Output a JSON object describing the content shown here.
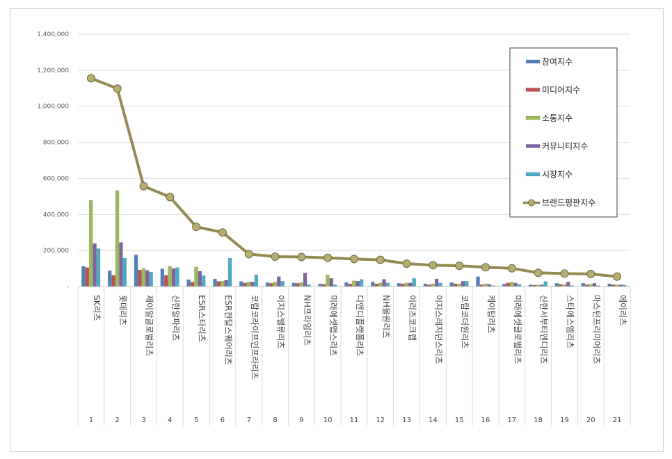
{
  "chart_data": {
    "type": "bar",
    "title": "",
    "xlabel": "",
    "ylabel": "",
    "ylim": [
      0,
      1400000
    ],
    "yticks": [
      "-",
      "200,000",
      "400,000",
      "600,000",
      "800,000",
      "1,000,000",
      "1,200,000",
      "1,400,000"
    ],
    "grid": true,
    "legend_position": "right",
    "categories": [
      "SK리츠",
      "롯데리츠",
      "제이알글로벌리츠",
      "신한알파리츠",
      "ESR스타리츠",
      "ESR켄달스퀘어리츠",
      "코람코라이프인프라리츠",
      "이지스밸류리츠",
      "NH프라임리츠",
      "미래에셋맵스리츠",
      "디앤디플랫폼리츠",
      "NH올원리츠",
      "이리츠코크렙",
      "이지스레지던스리츠",
      "코람코더원리츠",
      "케이탑리츠",
      "미래에셋글로벌리츠",
      "신한서부티엔디리츠",
      "스타에스엠리츠",
      "마스턴프리미어리츠",
      "에이리츠"
    ],
    "ranks": [
      "1",
      "2",
      "3",
      "4",
      "5",
      "6",
      "7",
      "8",
      "9",
      "10",
      "11",
      "12",
      "13",
      "14",
      "15",
      "16",
      "17",
      "18",
      "19",
      "20",
      "21"
    ],
    "series": [
      {
        "name": "참여지수",
        "color": "#4f81bd",
        "values": [
          112000,
          88000,
          175000,
          98000,
          38000,
          42000,
          28000,
          22000,
          20000,
          15000,
          22000,
          26000,
          18000,
          15000,
          22000,
          55000,
          14000,
          10000,
          18000,
          18000,
          15000
        ]
      },
      {
        "name": "미디어지수",
        "color": "#c0504d",
        "values": [
          105000,
          62000,
          92000,
          62000,
          24000,
          28000,
          20000,
          18000,
          18000,
          12000,
          14000,
          15000,
          15000,
          10000,
          15000,
          10000,
          20000,
          8000,
          12000,
          10000,
          10000
        ]
      },
      {
        "name": "소통지수",
        "color": "#9bbb59",
        "values": [
          478000,
          532000,
          100000,
          112000,
          108000,
          30000,
          25000,
          25000,
          22000,
          65000,
          32000,
          20000,
          20000,
          15000,
          15000,
          15000,
          25000,
          8000,
          12000,
          12000,
          10000
        ]
      },
      {
        "name": "커뮤니티지수",
        "color": "#8064a2",
        "values": [
          238000,
          245000,
          90000,
          100000,
          85000,
          35000,
          25000,
          55000,
          75000,
          45000,
          30000,
          40000,
          20000,
          42000,
          30000,
          12000,
          20000,
          10000,
          25000,
          18000,
          10000
        ]
      },
      {
        "name": "시장지수",
        "color": "#4bacc6",
        "values": [
          210000,
          158000,
          80000,
          105000,
          60000,
          158000,
          65000,
          30000,
          10000,
          10000,
          40000,
          20000,
          45000,
          20000,
          30000,
          5000,
          12000,
          28000,
          5000,
          5000,
          8000
        ]
      }
    ],
    "line": {
      "name": "브랜드평판지수",
      "color": "#948a54",
      "values": [
        1155000,
        1098000,
        557000,
        496000,
        331000,
        300000,
        180000,
        166000,
        164000,
        159000,
        153000,
        148000,
        127000,
        118000,
        115000,
        107000,
        101000,
        76000,
        72000,
        70000,
        55000
      ]
    }
  }
}
